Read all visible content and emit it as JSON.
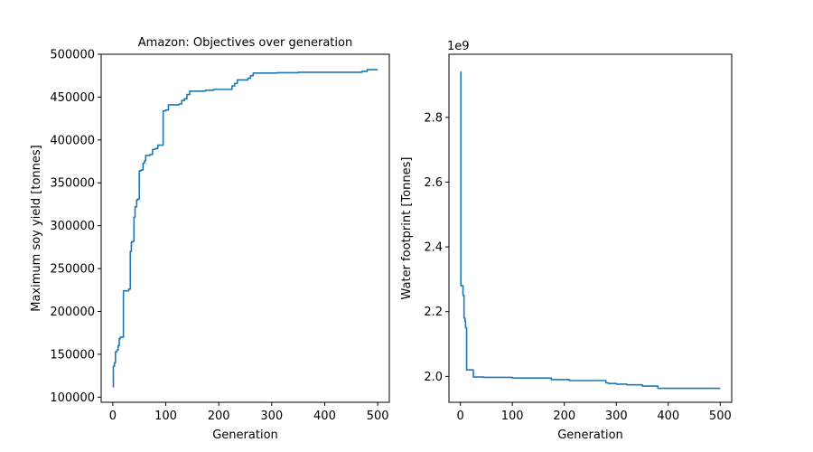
{
  "chart_data": [
    {
      "type": "line",
      "title": "Amazon: Objectives over generation",
      "xlabel": "Generation",
      "ylabel": "Maximum soy yield [tonnes]",
      "offset_text": "",
      "xlim": [
        -22,
        522
      ],
      "ylim": [
        94000,
        500000
      ],
      "xticks": [
        0,
        100,
        200,
        300,
        400,
        500
      ],
      "xtick_labels": [
        "0",
        "100",
        "200",
        "300",
        "400",
        "500"
      ],
      "yticks": [
        100000,
        150000,
        200000,
        250000,
        300000,
        350000,
        400000,
        450000,
        500000
      ],
      "ytick_labels": [
        "100000",
        "150000",
        "200000",
        "250000",
        "300000",
        "350000",
        "400000",
        "450000",
        "500000"
      ],
      "grid": false,
      "legend": "none",
      "series": [
        {
          "color": "#1f77b4",
          "step": true,
          "x": [
            0,
            1,
            3,
            5,
            8,
            10,
            12,
            14,
            16,
            20,
            30,
            33,
            35,
            38,
            40,
            42,
            45,
            47,
            50,
            53,
            57,
            60,
            62,
            65,
            70,
            75,
            80,
            85,
            95,
            100,
            105,
            110,
            125,
            130,
            135,
            140,
            145,
            175,
            190,
            215,
            225,
            230,
            235,
            250,
            255,
            260,
            265,
            310,
            350,
            450,
            470,
            480,
            500
          ],
          "y": [
            112000,
            136000,
            140000,
            153000,
            155000,
            160000,
            168000,
            170000,
            170000,
            224000,
            226000,
            270000,
            281000,
            282000,
            310000,
            322000,
            330000,
            331000,
            364000,
            365000,
            373000,
            376000,
            382000,
            382000,
            383000,
            389000,
            390000,
            394000,
            434000,
            435000,
            441000,
            441000,
            442000,
            446000,
            448000,
            453000,
            457000,
            458000,
            459000,
            459000,
            463000,
            466000,
            470000,
            470000,
            472000,
            475000,
            478000,
            478500,
            479000,
            479000,
            480000,
            482000,
            482000
          ]
        }
      ]
    },
    {
      "type": "line",
      "title": "",
      "xlabel": "Generation",
      "ylabel": "Water footprint [Tonnes]",
      "offset_text": "1e9",
      "xlim": [
        -22,
        522
      ],
      "ylim": [
        1.92,
        2.995
      ],
      "xticks": [
        0,
        100,
        200,
        300,
        400,
        500
      ],
      "xtick_labels": [
        "0",
        "100",
        "200",
        "300",
        "400",
        "500"
      ],
      "yticks": [
        2.0,
        2.2,
        2.4,
        2.6,
        2.8
      ],
      "ytick_labels": [
        "2.0",
        "2.2",
        "2.4",
        "2.6",
        "2.8"
      ],
      "grid": false,
      "legend": "none",
      "series": [
        {
          "color": "#1f77b4",
          "step": true,
          "x": [
            0,
            1,
            3,
            5,
            7,
            9,
            10,
            12,
            15,
            25,
            45,
            100,
            175,
            210,
            280,
            285,
            300,
            320,
            350,
            380,
            500
          ],
          "y": [
            2.94,
            2.28,
            2.28,
            2.25,
            2.18,
            2.17,
            2.15,
            2.02,
            2.02,
            1.998,
            1.997,
            1.995,
            1.99,
            1.987,
            1.98,
            1.978,
            1.976,
            1.974,
            1.97,
            1.963,
            1.963
          ]
        }
      ]
    }
  ]
}
